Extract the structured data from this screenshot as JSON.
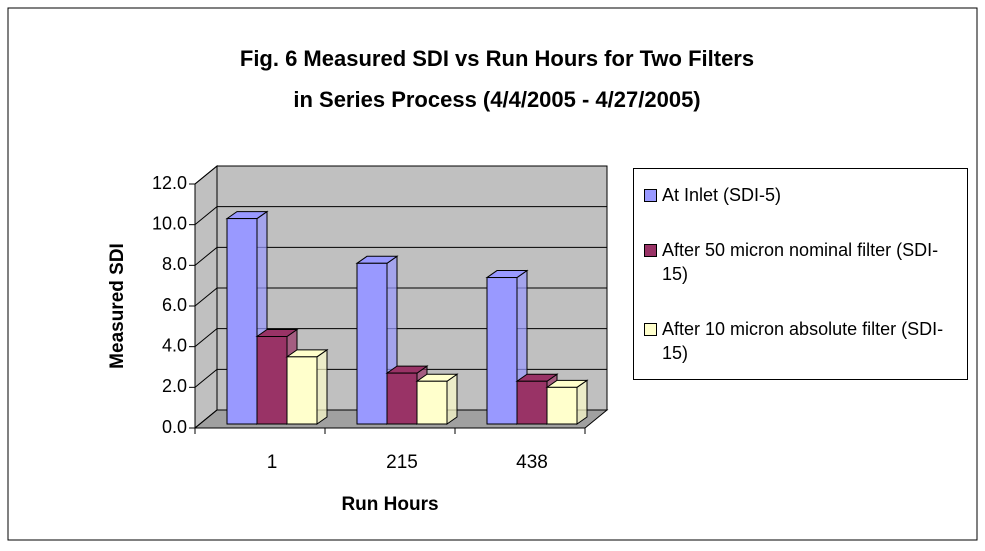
{
  "chart_data": {
    "type": "bar3d",
    "title": [
      "Fig. 6   Measured SDI vs Run  Hours for Two Filters",
      "in Series Process  (4/4/2005 - 4/27/2005)"
    ],
    "xlabel": "Run Hours",
    "ylabel": "Measured SDI",
    "categories": [
      "1",
      "215",
      "438"
    ],
    "series": [
      {
        "name": "At Inlet (SDI-5)",
        "color": "#9999ff",
        "values": [
          10.3,
          8.1,
          7.4
        ]
      },
      {
        "name": "After 50 micron nominal filter (SDI-15)",
        "color": "#993366",
        "values": [
          4.5,
          2.7,
          2.3
        ]
      },
      {
        "name": "After 10 micron absolute filter (SDI-15)",
        "color": "#ffffcc",
        "values": [
          3.5,
          2.3,
          2.0
        ]
      }
    ],
    "ylim": [
      0,
      12
    ],
    "yticks": [
      {
        "value": 0,
        "label": "0.0"
      },
      {
        "value": 2,
        "label": "2.0"
      },
      {
        "value": 4,
        "label": "4.0"
      },
      {
        "value": 6,
        "label": "6.0"
      },
      {
        "value": 8,
        "label": "8.0"
      },
      {
        "value": 10,
        "label": "10.0"
      },
      {
        "value": 12,
        "label": "12.0"
      }
    ],
    "grid": true,
    "wall_color": "#c0c0c0"
  }
}
